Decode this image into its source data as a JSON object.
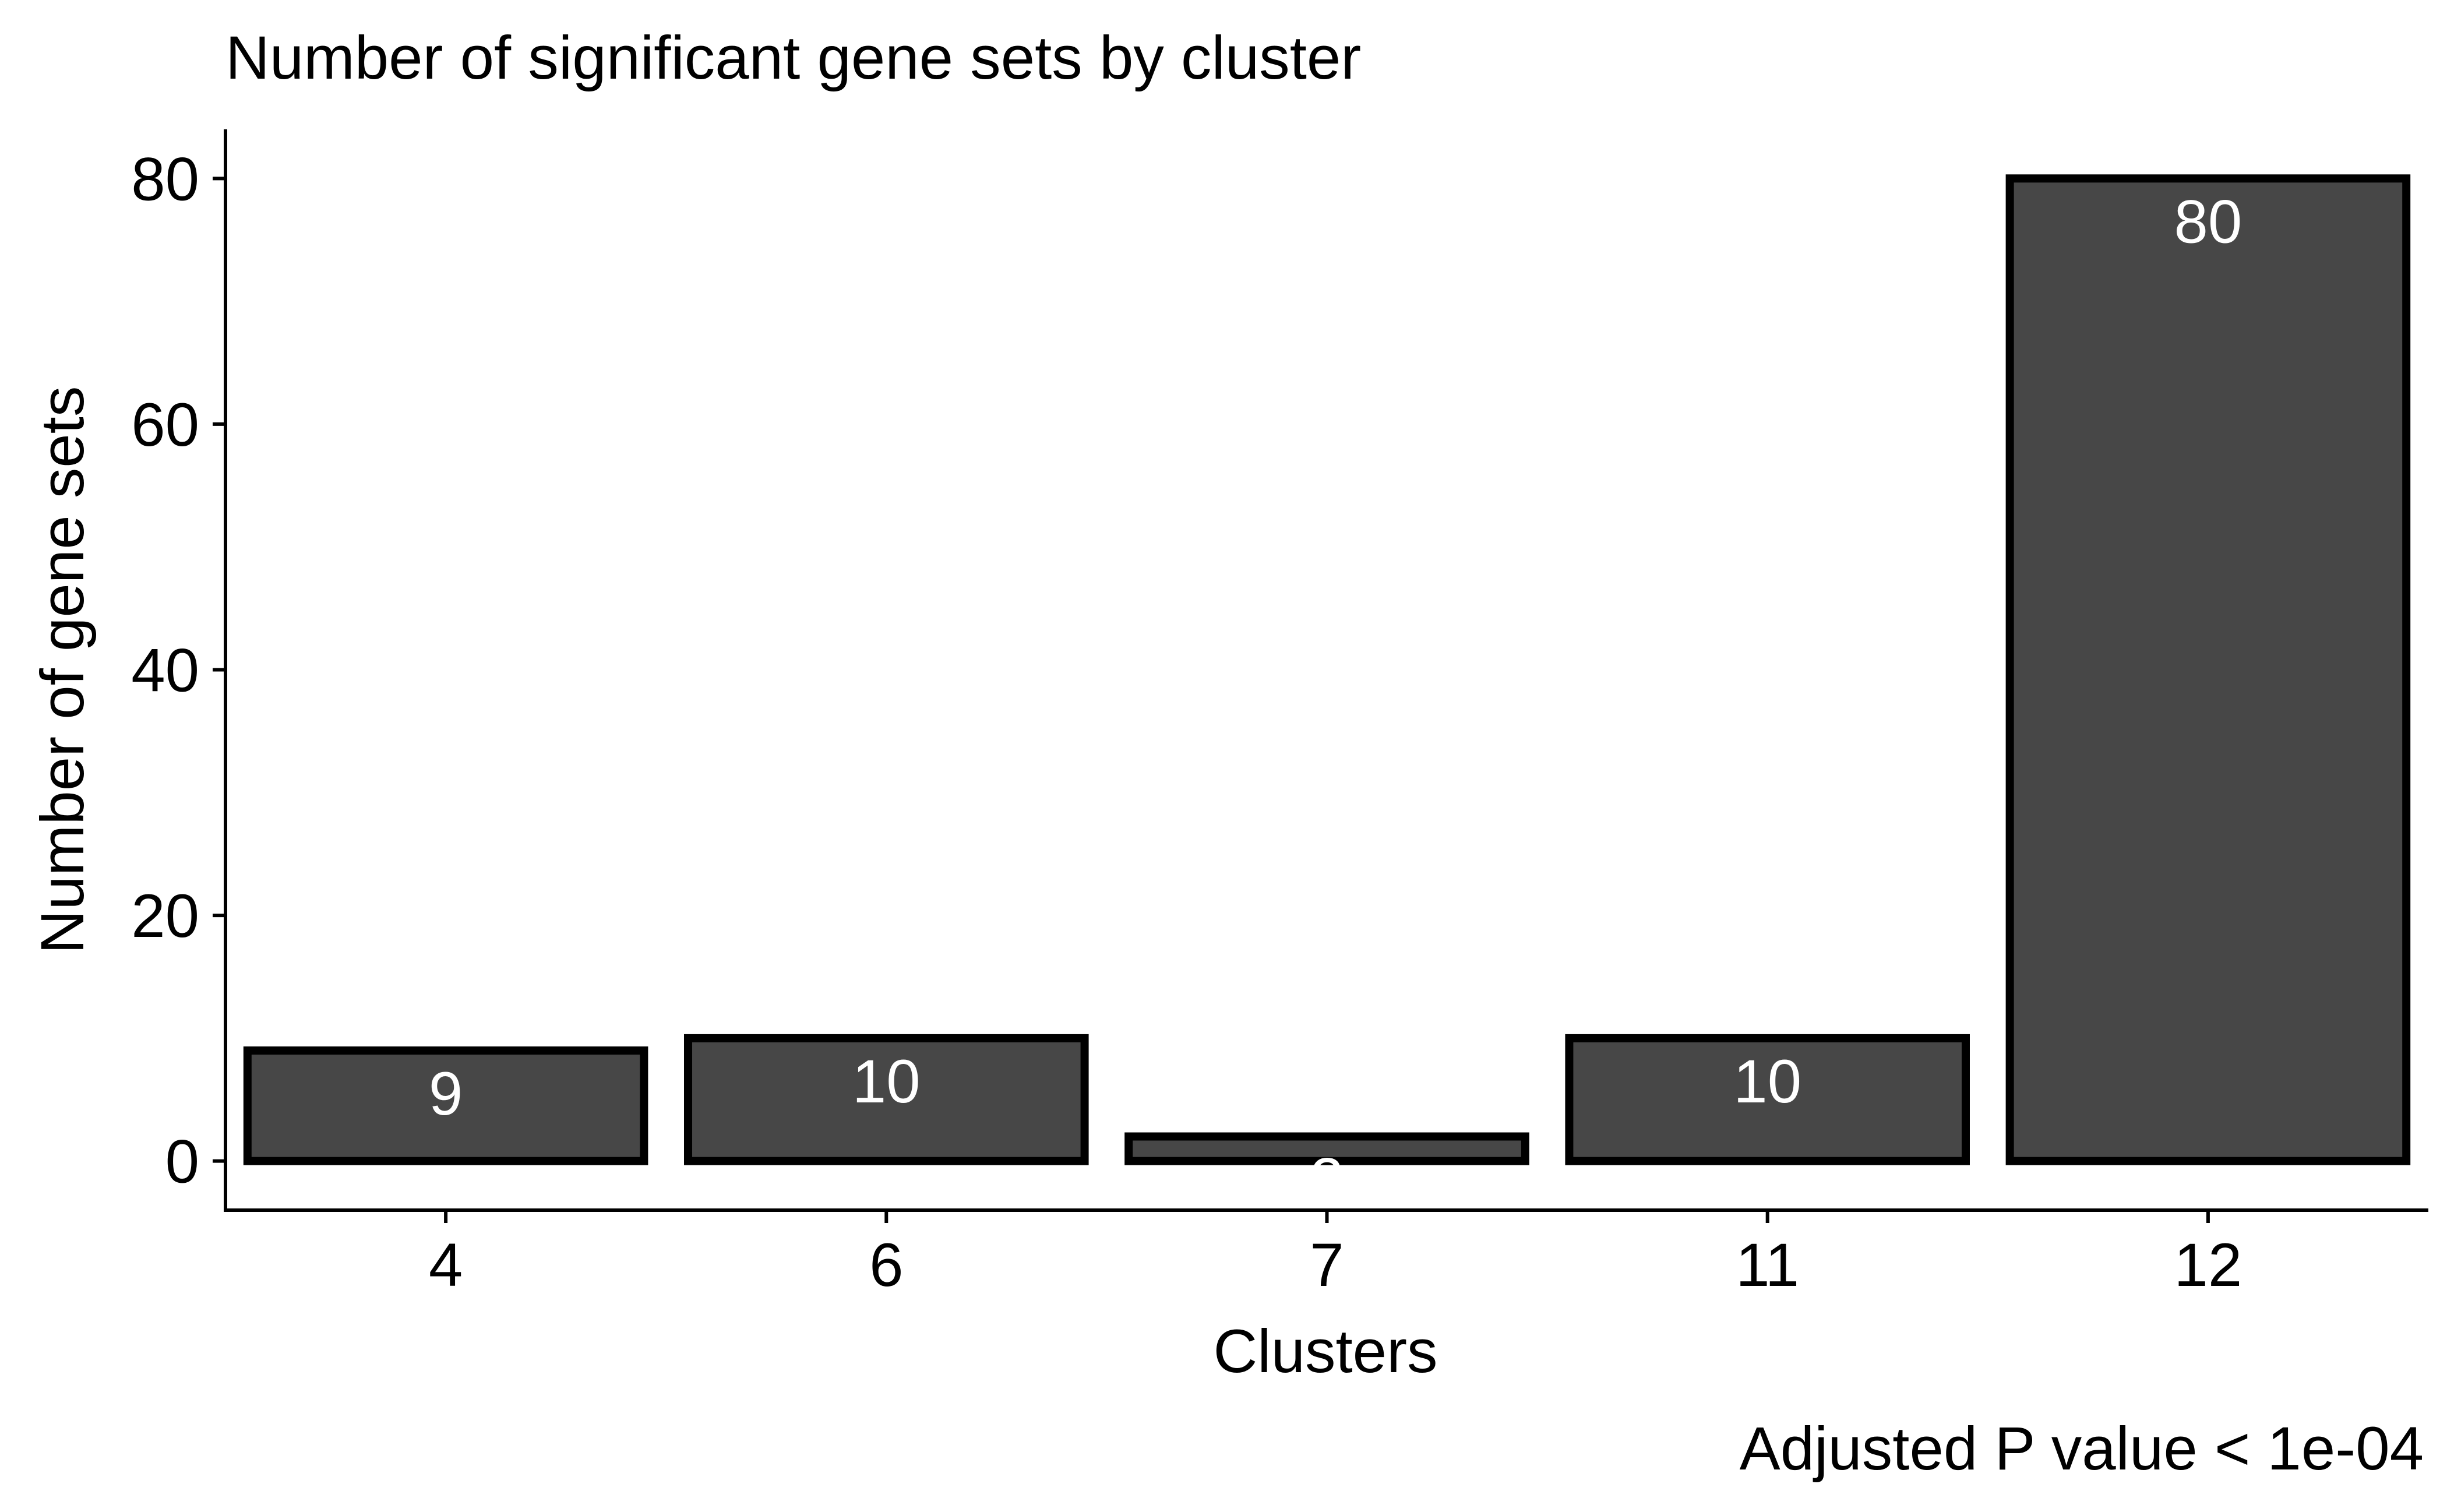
{
  "chart_data": {
    "type": "bar",
    "title": "Number of significant gene sets by cluster",
    "xlabel": "Clusters",
    "ylabel": "Number of gene sets",
    "caption": "Adjusted P value < 1e-04",
    "categories": [
      "4",
      "6",
      "7",
      "11",
      "12"
    ],
    "values": [
      9,
      10,
      2,
      10,
      80
    ],
    "data_labels": [
      "9",
      "10",
      "2",
      "10",
      "80"
    ],
    "yticks": [
      0,
      20,
      40,
      60,
      80
    ],
    "ytick_labels": [
      "0",
      "20",
      "40",
      "60",
      "80"
    ],
    "ylim": [
      -4,
      84
    ],
    "grid": false,
    "legend": "none",
    "bar_fill": "#474747",
    "bar_outline": "#000000",
    "label_color": "#ffffff"
  }
}
